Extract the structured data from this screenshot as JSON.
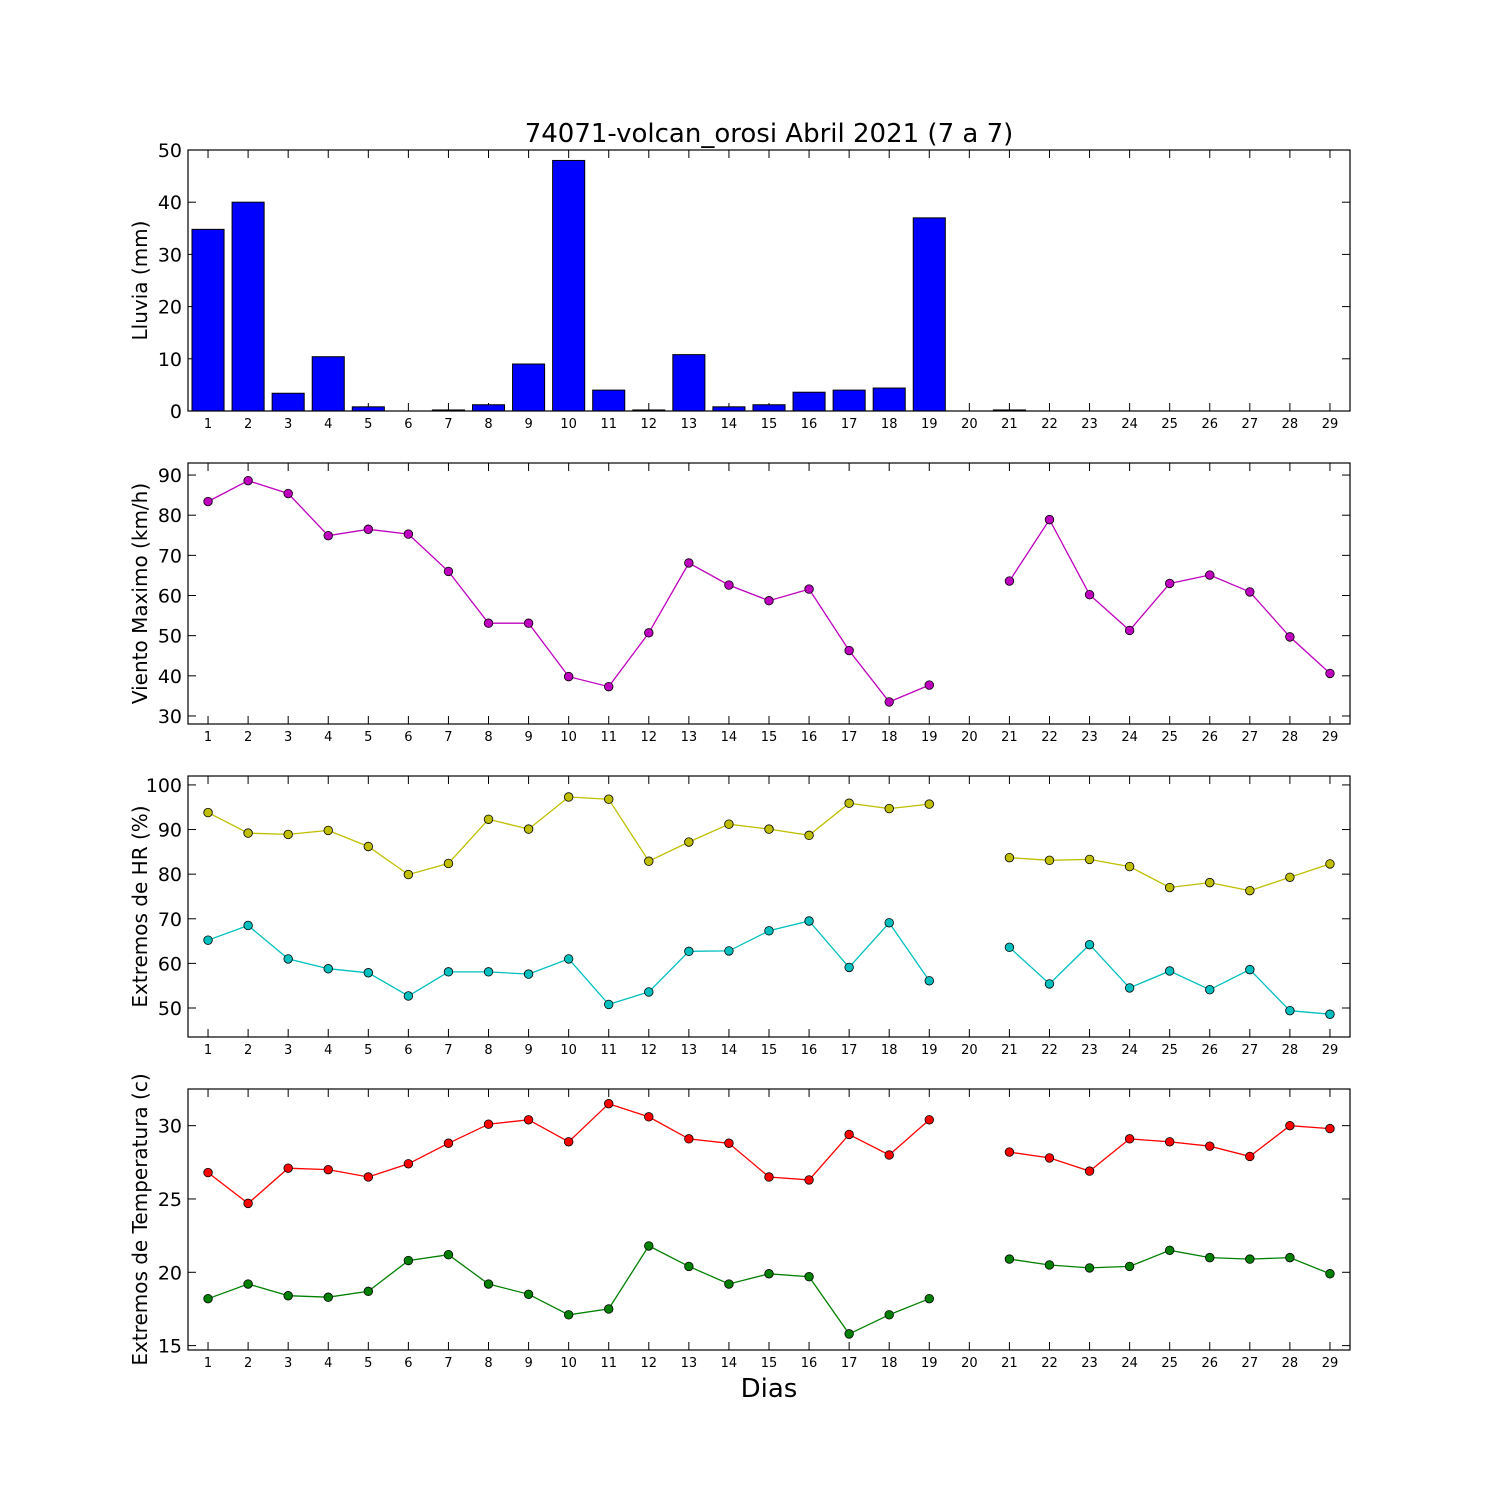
{
  "title": "74071-volcan_orosi Abril 2021  (7 a 7)",
  "xlabel": "Dias",
  "chart_data": [
    {
      "type": "bar",
      "title": "74071-volcan_orosi Abril 2021  (7 a 7)",
      "ylabel": "Lluvia (mm)",
      "ylim": [
        0,
        50
      ],
      "yticks": [
        0,
        10,
        20,
        30,
        40,
        50
      ],
      "x": [
        1,
        2,
        3,
        4,
        5,
        6,
        7,
        8,
        9,
        10,
        11,
        12,
        13,
        14,
        15,
        16,
        17,
        18,
        19,
        20,
        21,
        22,
        23,
        24,
        25,
        26,
        27,
        28,
        29
      ],
      "xticks": [
        1,
        2,
        3,
        4,
        5,
        6,
        7,
        8,
        9,
        10,
        11,
        12,
        13,
        14,
        15,
        16,
        17,
        18,
        19,
        20,
        21,
        22,
        23,
        24,
        25,
        26,
        27,
        28,
        29
      ],
      "series": [
        {
          "color": "#0000ff",
          "values": [
            34.8,
            40.0,
            3.4,
            10.4,
            0.8,
            0.0,
            0.2,
            1.2,
            9.0,
            48.0,
            4.0,
            0.2,
            10.8,
            0.8,
            1.2,
            3.6,
            4.0,
            4.4,
            37.0,
            null,
            0.2,
            0.0,
            0.0,
            0.0,
            0.0,
            0.0,
            0.0,
            0.0,
            0.0
          ]
        }
      ]
    },
    {
      "type": "line",
      "ylabel": "Viento Maximo (km/h)",
      "ylim": [
        28,
        93
      ],
      "yticks": [
        30,
        40,
        50,
        60,
        70,
        80,
        90
      ],
      "x": [
        1,
        2,
        3,
        4,
        5,
        6,
        7,
        8,
        9,
        10,
        11,
        12,
        13,
        14,
        15,
        16,
        17,
        18,
        19,
        20,
        21,
        22,
        23,
        24,
        25,
        26,
        27,
        28,
        29
      ],
      "xticks": [
        1,
        2,
        3,
        4,
        5,
        6,
        7,
        8,
        9,
        10,
        11,
        12,
        13,
        14,
        15,
        16,
        17,
        18,
        19,
        20,
        21,
        22,
        23,
        24,
        25,
        26,
        27,
        28,
        29
      ],
      "series": [
        {
          "color": "#bf00bf",
          "values": [
            83.4,
            88.6,
            85.4,
            74.9,
            76.5,
            75.3,
            66.0,
            53.1,
            53.1,
            39.8,
            37.3,
            50.7,
            68.1,
            62.6,
            58.7,
            61.6,
            46.3,
            33.5,
            37.7,
            null,
            63.6,
            78.9,
            60.2,
            51.3,
            63.0,
            65.1,
            60.9,
            49.7,
            40.6
          ]
        }
      ]
    },
    {
      "type": "line",
      "ylabel": "Extremos de HR (%)",
      "ylim": [
        43.5,
        102
      ],
      "yticks": [
        50,
        60,
        70,
        80,
        90,
        100
      ],
      "x": [
        1,
        2,
        3,
        4,
        5,
        6,
        7,
        8,
        9,
        10,
        11,
        12,
        13,
        14,
        15,
        16,
        17,
        18,
        19,
        20,
        21,
        22,
        23,
        24,
        25,
        26,
        27,
        28,
        29
      ],
      "xticks": [
        1,
        2,
        3,
        4,
        5,
        6,
        7,
        8,
        9,
        10,
        11,
        12,
        13,
        14,
        15,
        16,
        17,
        18,
        19,
        20,
        21,
        22,
        23,
        24,
        25,
        26,
        27,
        28,
        29
      ],
      "series": [
        {
          "color": "#bfbf00",
          "values": [
            93.8,
            89.2,
            88.9,
            89.8,
            86.2,
            79.9,
            82.4,
            92.3,
            90.1,
            97.3,
            96.8,
            82.9,
            87.2,
            91.2,
            90.1,
            88.7,
            95.9,
            94.7,
            95.7,
            null,
            83.7,
            83.1,
            83.3,
            81.7,
            77.0,
            78.1,
            76.3,
            79.3,
            82.3
          ]
        },
        {
          "color": "#00bfbf",
          "values": [
            65.2,
            68.5,
            61.0,
            58.8,
            57.9,
            52.7,
            58.1,
            58.1,
            57.6,
            61.0,
            50.8,
            53.6,
            62.7,
            62.8,
            67.3,
            69.5,
            59.1,
            69.1,
            56.1,
            null,
            63.6,
            55.4,
            64.2,
            54.5,
            58.3,
            54.1,
            58.6,
            49.4,
            48.6
          ]
        }
      ]
    },
    {
      "type": "line",
      "ylabel": "Extremos de Temperatura (c)",
      "ylim": [
        14.7,
        32.5
      ],
      "yticks": [
        15,
        20,
        25,
        30
      ],
      "x": [
        1,
        2,
        3,
        4,
        5,
        6,
        7,
        8,
        9,
        10,
        11,
        12,
        13,
        14,
        15,
        16,
        17,
        18,
        19,
        20,
        21,
        22,
        23,
        24,
        25,
        26,
        27,
        28,
        29
      ],
      "xticks": [
        1,
        2,
        3,
        4,
        5,
        6,
        7,
        8,
        9,
        10,
        11,
        12,
        13,
        14,
        15,
        16,
        17,
        18,
        19,
        20,
        21,
        22,
        23,
        24,
        25,
        26,
        27,
        28,
        29
      ],
      "series": [
        {
          "color": "#ff0000",
          "values": [
            26.8,
            24.7,
            27.1,
            27.0,
            26.5,
            27.4,
            28.8,
            30.1,
            30.4,
            28.9,
            31.5,
            30.6,
            29.1,
            28.8,
            26.5,
            26.3,
            29.4,
            28.0,
            30.4,
            null,
            28.2,
            27.8,
            26.9,
            29.1,
            28.9,
            28.6,
            27.9,
            30.0,
            29.8
          ]
        },
        {
          "color": "#008000",
          "values": [
            18.2,
            19.2,
            18.4,
            18.3,
            18.7,
            20.8,
            21.2,
            19.2,
            18.5,
            17.1,
            17.5,
            21.8,
            20.4,
            19.2,
            19.9,
            19.7,
            15.8,
            17.1,
            18.2,
            null,
            20.9,
            20.5,
            20.3,
            20.4,
            21.5,
            21.0,
            20.9,
            21.0,
            19.9
          ]
        }
      ]
    }
  ]
}
